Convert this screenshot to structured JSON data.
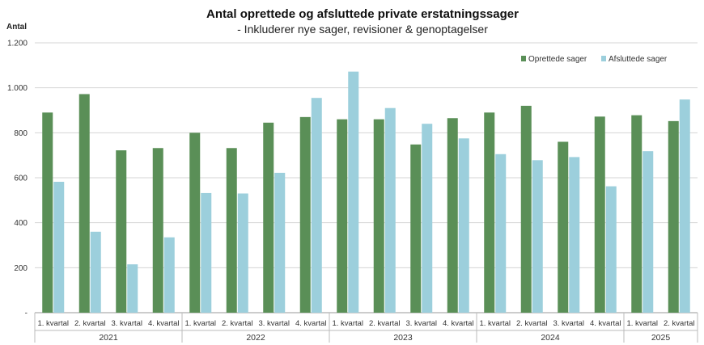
{
  "chart_data": {
    "type": "bar",
    "title": "Antal oprettede og afsluttede private erstatningssager",
    "subtitle": "- Inkluderer nye sager, revisioner & genoptagelser",
    "ylabel": "Antal",
    "ylim": [
      0,
      1200
    ],
    "yticks": [
      0,
      200,
      400,
      600,
      800,
      1000,
      1200
    ],
    "ytick_labels": [
      "-",
      "200",
      "400",
      "600",
      "800",
      "1.000",
      "1.200"
    ],
    "grid": true,
    "legend_position": "top-right",
    "groups": [
      {
        "year": "2021",
        "categories": [
          "1. kvartal",
          "2. kvartal",
          "3. kvartal",
          "4. kvartal"
        ]
      },
      {
        "year": "2022",
        "categories": [
          "1. kvartal",
          "2. kvartal",
          "3. kvartal",
          "4. kvartal"
        ]
      },
      {
        "year": "2023",
        "categories": [
          "1. kvartal",
          "2. kvartal",
          "3. kvartal",
          "4. kvartal"
        ]
      },
      {
        "year": "2024",
        "categories": [
          "1. kvartal",
          "2. kvartal",
          "3. kvartal",
          "4. kvartal"
        ]
      },
      {
        "year": "2025",
        "categories": [
          "1. kvartal",
          "2. kvartal"
        ]
      }
    ],
    "series": [
      {
        "name": "Oprettede sager",
        "color": "#5a8f57",
        "values": [
          890,
          972,
          722,
          732,
          800,
          732,
          845,
          870,
          860,
          860,
          748,
          865,
          890,
          920,
          760,
          872,
          878,
          852
        ]
      },
      {
        "name": "Afsluttede sager",
        "color": "#9ccfdc",
        "values": [
          582,
          360,
          215,
          335,
          532,
          530,
          622,
          955,
          1072,
          910,
          840,
          775,
          705,
          678,
          692,
          562,
          718,
          948
        ]
      }
    ]
  }
}
